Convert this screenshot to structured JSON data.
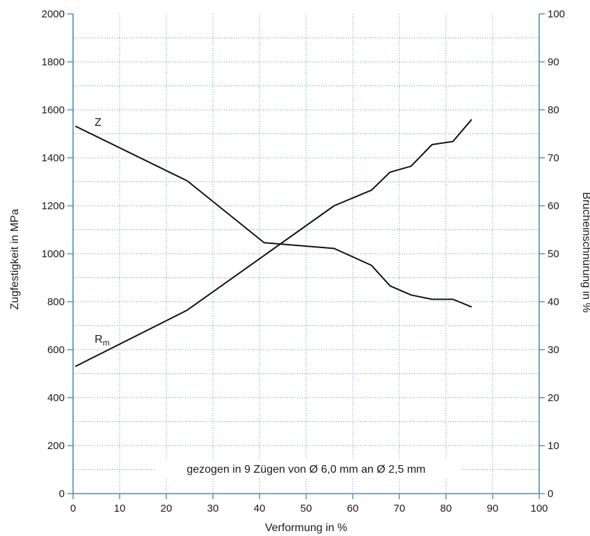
{
  "chart_data": {
    "type": "line",
    "xlabel": "Verformung in %",
    "ylabel_left": "Zugfestigkeit in MPa",
    "ylabel_right": "Brucheinschnürung in %",
    "xlim": [
      0,
      100
    ],
    "ylim_left": [
      0,
      2000
    ],
    "ylim_right": [
      0,
      100
    ],
    "x_ticks": [
      "0",
      "10",
      "20",
      "30",
      "40",
      "50",
      "60",
      "70",
      "80",
      "90",
      "100"
    ],
    "y_left_ticks": [
      "0",
      "200",
      "400",
      "600",
      "800",
      "1000",
      "1200",
      "1400",
      "1600",
      "1800",
      "2000"
    ],
    "y_right_ticks": [
      "0",
      "10",
      "20",
      "30",
      "40",
      "50",
      "60",
      "70",
      "80",
      "90",
      "100"
    ],
    "grid": true,
    "annotation": "gezogen in 9 Zügen von Ø 6,0 mm an Ø 2,5 mm",
    "series": [
      {
        "name": "Rm",
        "label_main": "R",
        "label_sub": "m",
        "axis": "left",
        "x": [
          0.5,
          24.5,
          56,
          64,
          68,
          72.5,
          77,
          81.5,
          85.5
        ],
        "y": [
          530,
          765,
          1200,
          1265,
          1340,
          1365,
          1455,
          1468,
          1560
        ]
      },
      {
        "name": "Z",
        "label_main": "Z",
        "label_sub": "",
        "axis": "right",
        "x": [
          0.5,
          24.5,
          41,
          56,
          64,
          68,
          72.5,
          77,
          81.5,
          85.5
        ],
        "y": [
          76.6,
          65.2,
          52.3,
          51.1,
          47.6,
          43.3,
          41.4,
          40.5,
          40.5,
          38.9
        ]
      }
    ],
    "colors": {
      "axis": "#3b8fc7",
      "grid": "#3b8fc7",
      "line": "#111111",
      "text": "#1a1a1a"
    }
  }
}
